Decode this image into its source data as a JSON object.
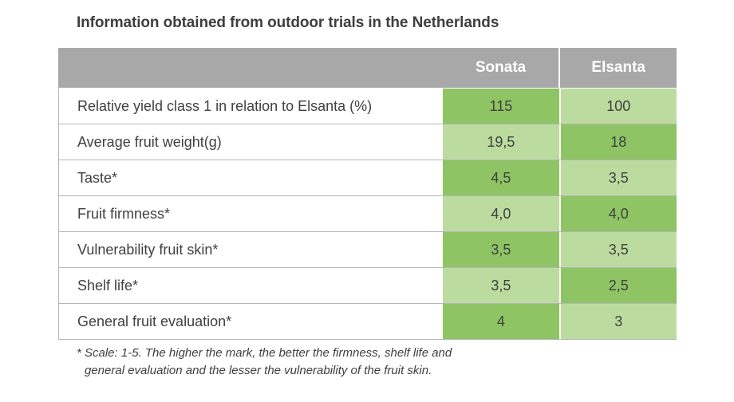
{
  "title": "Information obtained from outdoor trials in the Netherlands",
  "columns": [
    "Sonata",
    "Elsanta"
  ],
  "rows": [
    {
      "label": "Relative yield class 1 in relation to Elsanta (%)",
      "sonata": "115",
      "elsanta": "100",
      "sonata_shade": "dark",
      "elsanta_shade": "light"
    },
    {
      "label": "Average fruit weight(g)",
      "sonata": "19,5",
      "elsanta": "18",
      "sonata_shade": "light",
      "elsanta_shade": "dark"
    },
    {
      "label": "Taste*",
      "sonata": "4,5",
      "elsanta": "3,5",
      "sonata_shade": "dark",
      "elsanta_shade": "light"
    },
    {
      "label": "Fruit firmness*",
      "sonata": "4,0",
      "elsanta": "4,0",
      "sonata_shade": "light",
      "elsanta_shade": "dark"
    },
    {
      "label": "Vulnerability fruit skin*",
      "sonata": "3,5",
      "elsanta": "3,5",
      "sonata_shade": "dark",
      "elsanta_shade": "light"
    },
    {
      "label": "Shelf life*",
      "sonata": "3,5",
      "elsanta": "2,5",
      "sonata_shade": "light",
      "elsanta_shade": "dark"
    },
    {
      "label": "General fruit evaluation*",
      "sonata": "4",
      "elsanta": "3",
      "sonata_shade": "dark",
      "elsanta_shade": "light"
    }
  ],
  "footnote": {
    "line1": "* Scale: 1-5. The higher the mark, the better the firmness, shelf life and",
    "line2": "general evaluation and the lesser the vulnerability of the fruit skin."
  },
  "colors": {
    "header_bg": "#a8a8a8",
    "cell_dark": "#8ec463",
    "cell_light": "#bcdc9f"
  }
}
